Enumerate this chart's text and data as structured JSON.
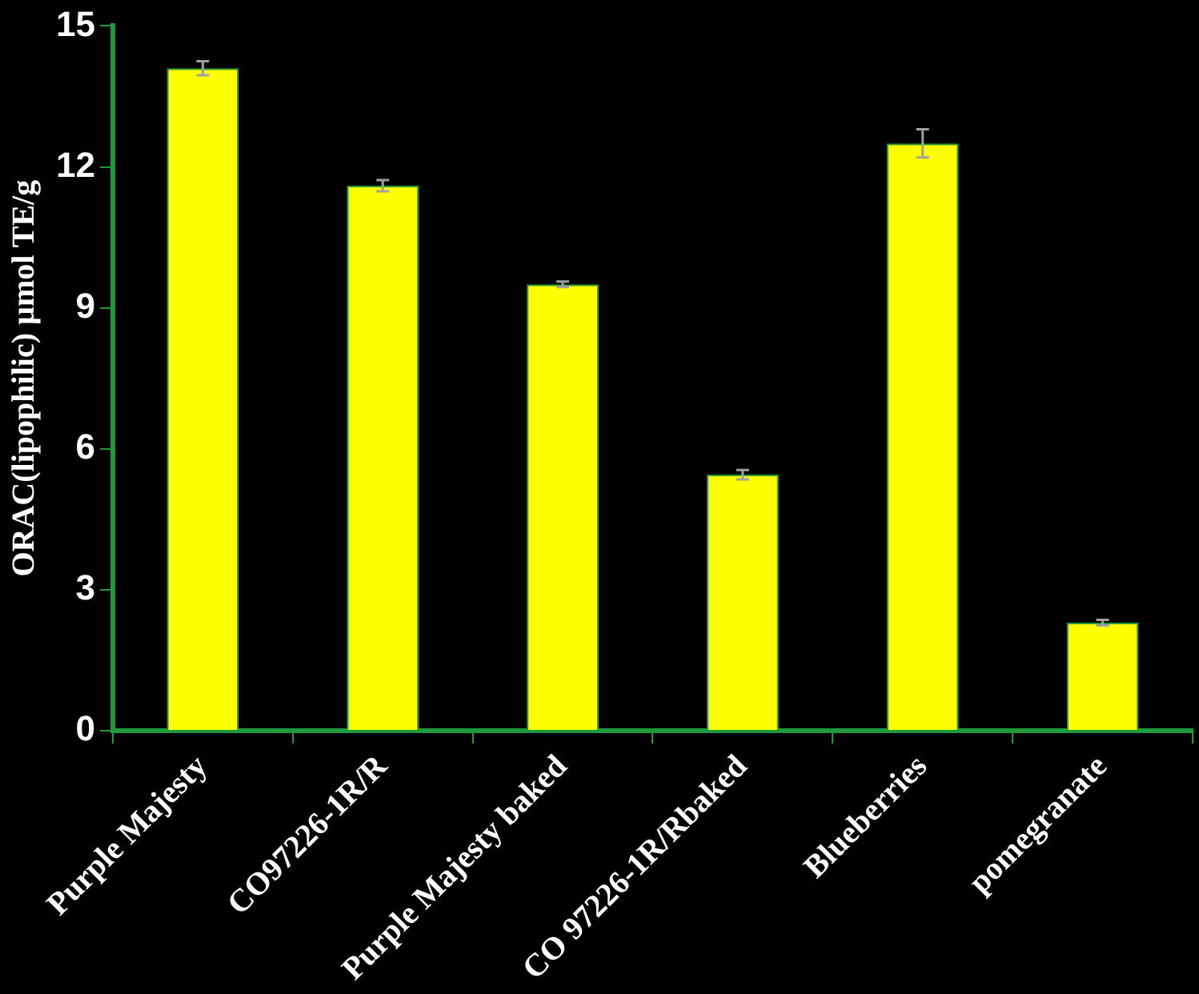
{
  "chart_data": {
    "type": "bar",
    "ylabel": "ORAC(lipophilic) µmol TE/g",
    "categories": [
      "Purple Majesty",
      "CO97226-1R/R",
      "Purple Majesty baked",
      "CO 97226-1R/Rbaked",
      "Blueberries",
      "pomegranate"
    ],
    "values": [
      14.1,
      11.6,
      9.5,
      5.45,
      12.5,
      2.3
    ],
    "errors": [
      0.15,
      0.12,
      0.06,
      0.1,
      0.3,
      0.06
    ],
    "color": "#ffff00",
    "ylim": [
      0,
      15
    ],
    "yticks": [
      0,
      3,
      6,
      9,
      12,
      15
    ],
    "grid": false,
    "legend": false
  }
}
